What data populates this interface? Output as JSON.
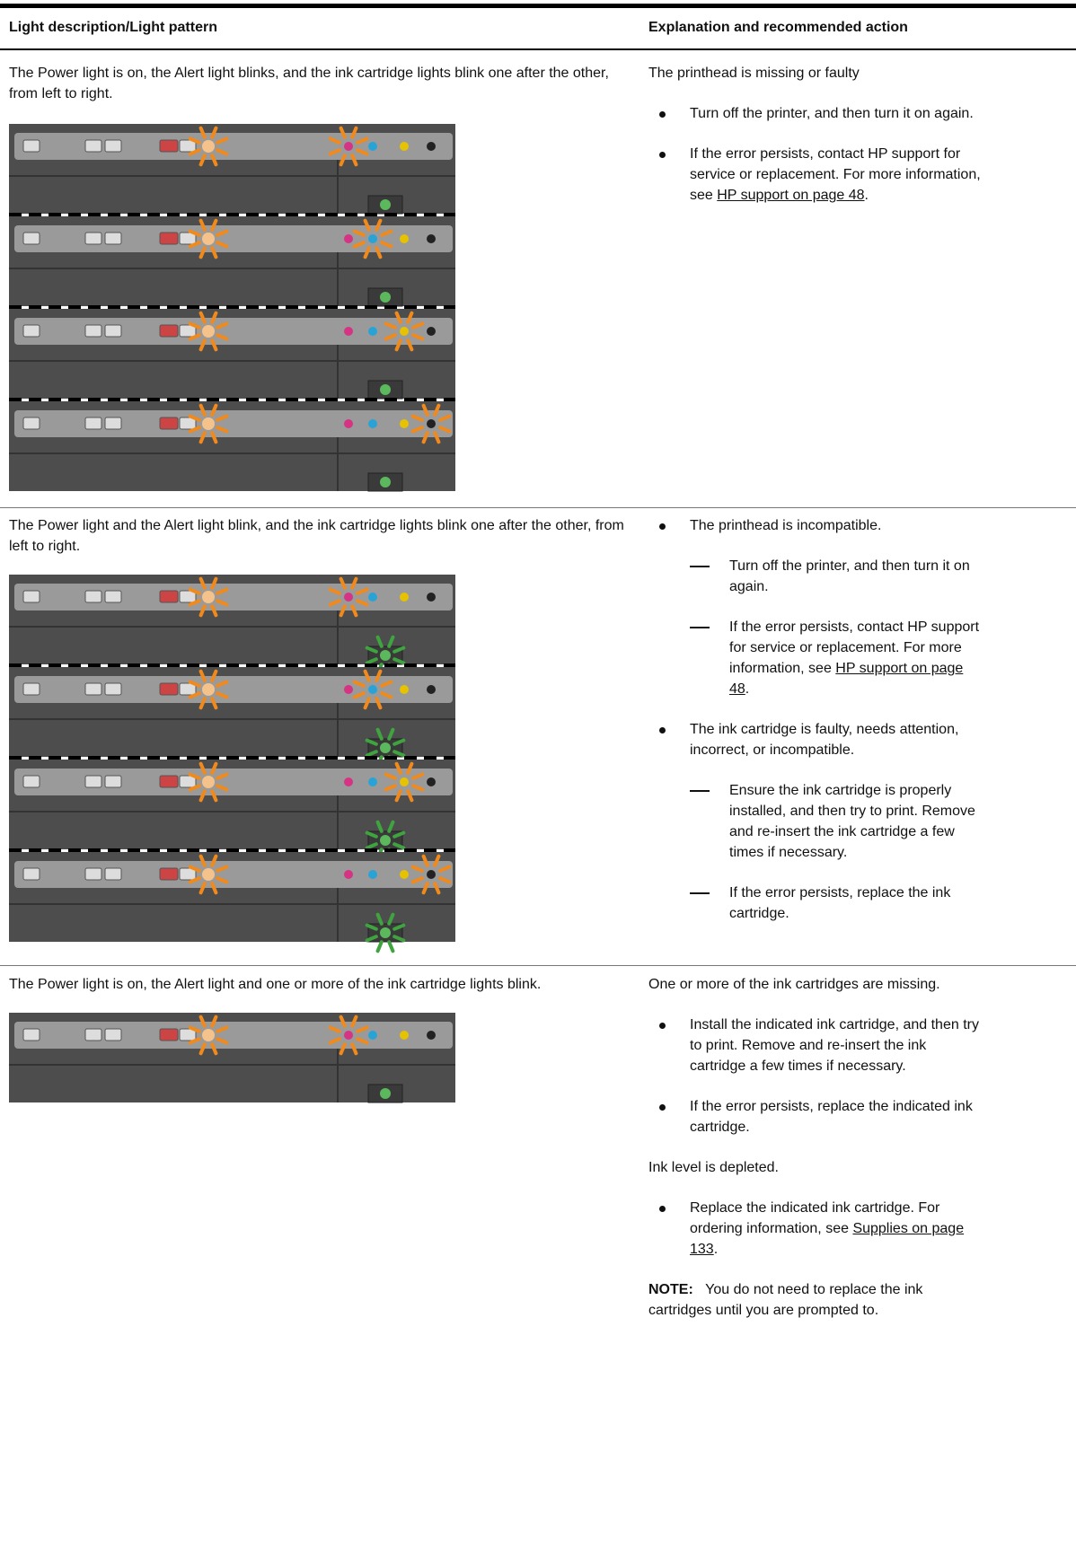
{
  "header": {
    "col1": "Light description/Light pattern",
    "col2": "Explanation and recommended action"
  },
  "rows": [
    {
      "description": "The Power light is on, the Alert light blinks, and the ink cartridge lights blink one after the other, from left to right.",
      "heading": "The printhead is missing or faulty",
      "bullets": [
        {
          "text": "Turn off the printer, and then turn it on again."
        },
        {
          "text": "If the error persists, contact HP support for service or replacement. For more information, see ",
          "link": "HP support on page 48",
          "end": "."
        }
      ]
    },
    {
      "description": "The Power light and the Alert light blink, and the ink cartridge lights blink one after the other, from left to right.",
      "bullets": [
        {
          "text": "The printhead is incompatible.",
          "steps": [
            {
              "text": "Turn off the printer, and then turn it on again."
            },
            {
              "text": "If the error persists, contact HP support for service or replacement. For more information, see ",
              "link": "HP support on page 48",
              "end": "."
            }
          ]
        },
        {
          "text": "The ink cartridge is faulty, needs attention, incorrect, or incompatible.",
          "steps": [
            {
              "text": "Ensure the ink cartridge is properly installed, and then try to print. Remove and re-insert the ink cartridge a few times if necessary."
            },
            {
              "text": "If the error persists, replace the ink cartridge."
            }
          ]
        }
      ]
    },
    {
      "description": "The Power light is on, the Alert light and one or more of the ink cartridge lights blink.",
      "sections": [
        {
          "heading": "One or more of the ink cartridges are missing.",
          "bullets": [
            {
              "text": "Install the indicated ink cartridge, and then try to print. Remove and re-insert the ink cartridge a few times if necessary."
            },
            {
              "text": "If the error persists, replace the indicated ink cartridge."
            }
          ]
        },
        {
          "heading": "Ink level is depleted.",
          "bullets": [
            {
              "text": "Replace the indicated ink cartridge. For ordering information, see ",
              "link": "Supplies on page 133",
              "end": "."
            }
          ]
        }
      ],
      "note": {
        "label": "NOTE:",
        "text": "You do not need to replace the ink cartridges until you are prompted to."
      }
    }
  ]
}
